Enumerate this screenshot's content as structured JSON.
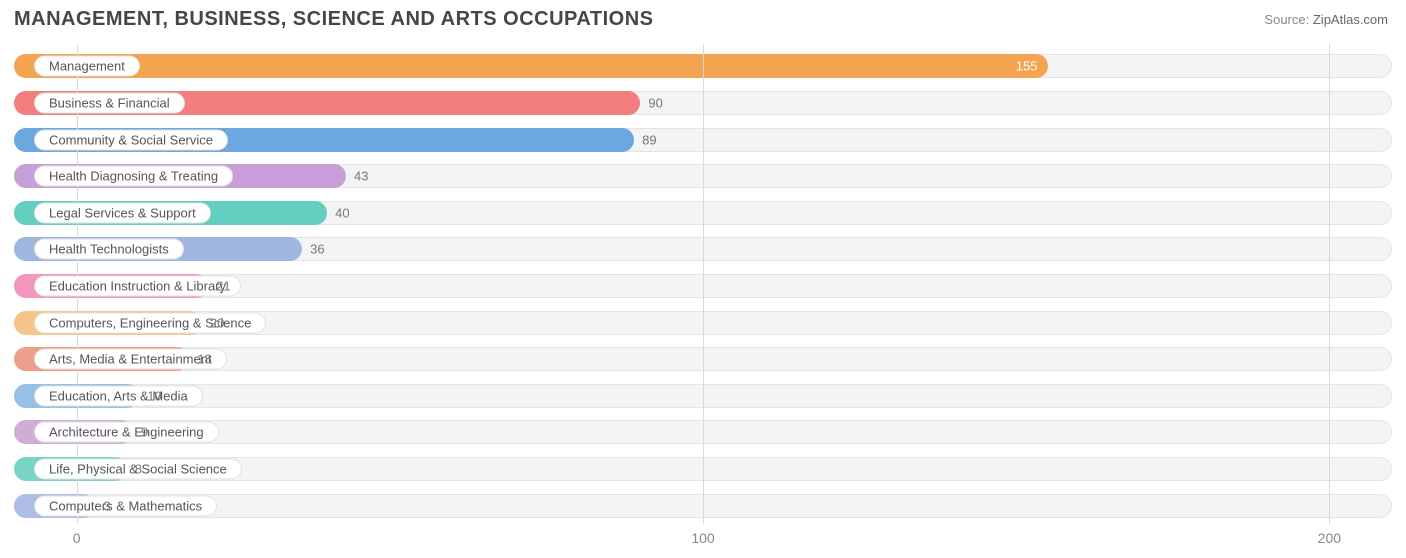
{
  "title": "MANAGEMENT, BUSINESS, SCIENCE AND ARTS OCCUPATIONS",
  "source_label": "Source:",
  "source_value": "ZipAtlas.com",
  "chart": {
    "type": "bar-horizontal",
    "xlim": [
      -10,
      210
    ],
    "x_ticks": [
      0,
      100,
      200
    ],
    "background_color": "#ffffff",
    "track_color": "#f4f4f4",
    "track_border": "#e4e4e4",
    "grid_color": "#d9d9d9",
    "tick_label_color": "#888888",
    "value_label_color": "#777777",
    "title_color": "#464646",
    "pill_bg": "#ffffff",
    "pill_border": "#e0e0e0",
    "pill_text_color": "#555555",
    "title_fontsize": 20,
    "label_fontsize": 13,
    "tick_fontsize": 14,
    "value_inside_color": "#ffffff",
    "bars": [
      {
        "label": "Management",
        "value": 155,
        "color": "#f4a350",
        "value_inside": true
      },
      {
        "label": "Business & Financial",
        "value": 90,
        "color": "#f27e7e",
        "value_inside": false
      },
      {
        "label": "Community & Social Service",
        "value": 89,
        "color": "#6ca7e0",
        "value_inside": false
      },
      {
        "label": "Health Diagnosing & Treating",
        "value": 43,
        "color": "#c89fd8",
        "value_inside": false
      },
      {
        "label": "Legal Services & Support",
        "value": 40,
        "color": "#63cdbf",
        "value_inside": false
      },
      {
        "label": "Health Technologists",
        "value": 36,
        "color": "#9fb6e0",
        "value_inside": false
      },
      {
        "label": "Education Instruction & Library",
        "value": 21,
        "color": "#f495bd",
        "value_inside": false
      },
      {
        "label": "Computers, Engineering & Science",
        "value": 20,
        "color": "#f6c58a",
        "value_inside": false
      },
      {
        "label": "Arts, Media & Entertainment",
        "value": 18,
        "color": "#ec9f8a",
        "value_inside": false
      },
      {
        "label": "Education, Arts & Media",
        "value": 10,
        "color": "#97c0e6",
        "value_inside": false
      },
      {
        "label": "Architecture & Engineering",
        "value": 9,
        "color": "#d0add9",
        "value_inside": false
      },
      {
        "label": "Life, Physical & Social Science",
        "value": 8,
        "color": "#7ad4c6",
        "value_inside": false
      },
      {
        "label": "Computers & Mathematics",
        "value": 3,
        "color": "#aebde4",
        "value_inside": false
      }
    ]
  }
}
